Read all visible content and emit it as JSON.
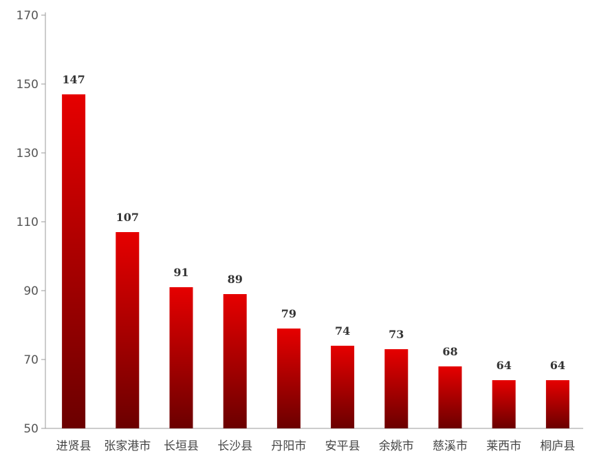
{
  "chart_data": {
    "type": "bar",
    "categories": [
      "进贤县",
      "张家港市",
      "长垣县",
      "长沙县",
      "丹阳市",
      "安平县",
      "余姚市",
      "慈溪市",
      "莱西市",
      "桐庐县"
    ],
    "values": [
      147,
      107,
      91,
      89,
      79,
      74,
      73,
      68,
      64,
      64
    ],
    "data_labels": [
      "147",
      "107",
      "91",
      "89",
      "79",
      "74",
      "73",
      "68",
      "64",
      "64"
    ],
    "y_ticks": [
      50,
      70,
      90,
      110,
      130,
      150,
      170
    ],
    "y_tick_labels": [
      "50",
      "70",
      "90",
      "110",
      "130",
      "150",
      "170"
    ],
    "ylim": [
      50,
      170
    ],
    "grid": false,
    "legend": "none",
    "colors": {
      "bar_top": "#e60000",
      "bar_bottom": "#6b0000",
      "axis": "#999999"
    }
  }
}
